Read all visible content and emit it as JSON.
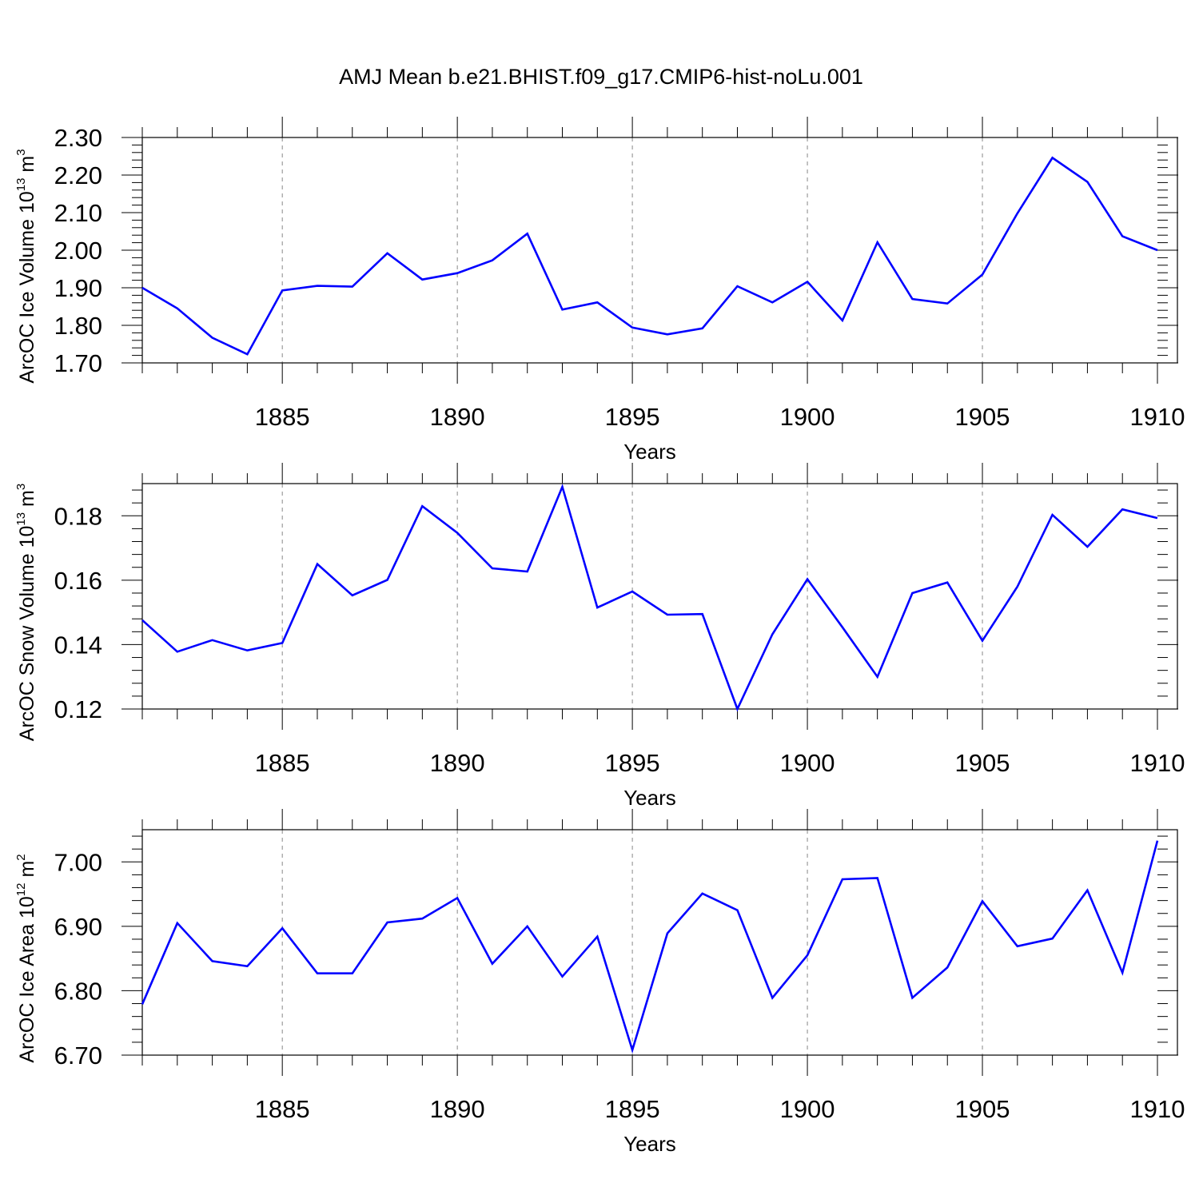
{
  "title": "AMJ Mean b.e21.BHIST.f09_g17.CMIP6-hist-noLu.001",
  "chart_data": [
    {
      "type": "line",
      "name": "ice-volume",
      "ylabel": "ArcOC Ice Volume 10",
      "ylabel_exp": "13",
      "ylabel_unit": " m",
      "ylabel_unit_exp": "3",
      "xlabel": "Years",
      "xlim": [
        1881,
        1910
      ],
      "ylim": [
        1.7,
        2.3
      ],
      "x_ticks": [
        1885,
        1890,
        1895,
        1900,
        1905,
        1910
      ],
      "y_ticks": [
        1.7,
        1.8,
        1.9,
        2.0,
        2.1,
        2.2,
        2.3
      ],
      "y_tick_labels": [
        "1.70",
        "1.80",
        "1.90",
        "2.00",
        "2.10",
        "2.20",
        "2.30"
      ],
      "line_color": "#0000ff",
      "grid": "vertical dashed at major x ticks",
      "x": [
        1881,
        1882,
        1883,
        1884,
        1885,
        1886,
        1887,
        1888,
        1889,
        1890,
        1891,
        1892,
        1893,
        1894,
        1895,
        1896,
        1897,
        1898,
        1899,
        1900,
        1901,
        1902,
        1903,
        1904,
        1905,
        1906,
        1907,
        1908,
        1909,
        1910
      ],
      "values": [
        1.9,
        1.845,
        1.767,
        1.723,
        1.893,
        1.905,
        1.903,
        1.992,
        1.922,
        1.939,
        1.973,
        2.044,
        1.842,
        1.861,
        1.794,
        1.776,
        1.792,
        1.904,
        1.861,
        1.916,
        1.813,
        2.021,
        1.87,
        1.858,
        1.935,
        2.098,
        2.246,
        2.182,
        2.037,
        2.0
      ]
    },
    {
      "type": "line",
      "name": "snow-volume",
      "ylabel": "ArcOC Snow Volume 10",
      "ylabel_exp": "13",
      "ylabel_unit": " m",
      "ylabel_unit_exp": "3",
      "xlabel": "Years",
      "xlim": [
        1881,
        1910
      ],
      "ylim": [
        0.12,
        0.19
      ],
      "x_ticks": [
        1885,
        1890,
        1895,
        1900,
        1905,
        1910
      ],
      "y_ticks": [
        0.12,
        0.14,
        0.16,
        0.18
      ],
      "y_tick_labels": [
        "0.12",
        "0.14",
        "0.16",
        "0.18"
      ],
      "line_color": "#0000ff",
      "grid": "vertical dashed at major x ticks",
      "x": [
        1881,
        1882,
        1883,
        1884,
        1885,
        1886,
        1887,
        1888,
        1889,
        1890,
        1891,
        1892,
        1893,
        1894,
        1895,
        1896,
        1897,
        1898,
        1899,
        1900,
        1901,
        1902,
        1903,
        1904,
        1905,
        1906,
        1907,
        1908,
        1909,
        1910
      ],
      "values": [
        0.1476,
        0.1378,
        0.1414,
        0.1382,
        0.1405,
        0.165,
        0.1553,
        0.1601,
        0.183,
        0.1747,
        0.1637,
        0.1627,
        0.189,
        0.1515,
        0.1565,
        0.1493,
        0.1495,
        0.12,
        0.1432,
        0.1603,
        0.1454,
        0.13,
        0.156,
        0.1593,
        0.1412,
        0.158,
        0.1803,
        0.1704,
        0.182,
        0.1793
      ]
    },
    {
      "type": "line",
      "name": "ice-area",
      "ylabel": "ArcOC Ice Area 10",
      "ylabel_exp": "12",
      "ylabel_unit": " m",
      "ylabel_unit_exp": "2",
      "xlabel": "Years",
      "xlim": [
        1881,
        1910
      ],
      "ylim": [
        6.7,
        7.05
      ],
      "x_ticks": [
        1885,
        1890,
        1895,
        1900,
        1905,
        1910
      ],
      "y_ticks": [
        6.7,
        6.8,
        6.9,
        7.0
      ],
      "y_tick_labels": [
        "6.70",
        "6.80",
        "6.90",
        "7.00"
      ],
      "line_color": "#0000ff",
      "grid": "vertical dashed at major x ticks",
      "x": [
        1881,
        1882,
        1883,
        1884,
        1885,
        1886,
        1887,
        1888,
        1889,
        1890,
        1891,
        1892,
        1893,
        1894,
        1895,
        1896,
        1897,
        1898,
        1899,
        1900,
        1901,
        1902,
        1903,
        1904,
        1905,
        1906,
        1907,
        1908,
        1909,
        1910
      ],
      "values": [
        6.779,
        6.905,
        6.846,
        6.838,
        6.897,
        6.827,
        6.827,
        6.906,
        6.912,
        6.944,
        6.842,
        6.9,
        6.822,
        6.884,
        6.708,
        6.889,
        6.951,
        6.925,
        6.789,
        6.855,
        6.973,
        6.975,
        6.789,
        6.836,
        6.939,
        6.869,
        6.881,
        6.956,
        6.828,
        7.033
      ]
    }
  ]
}
